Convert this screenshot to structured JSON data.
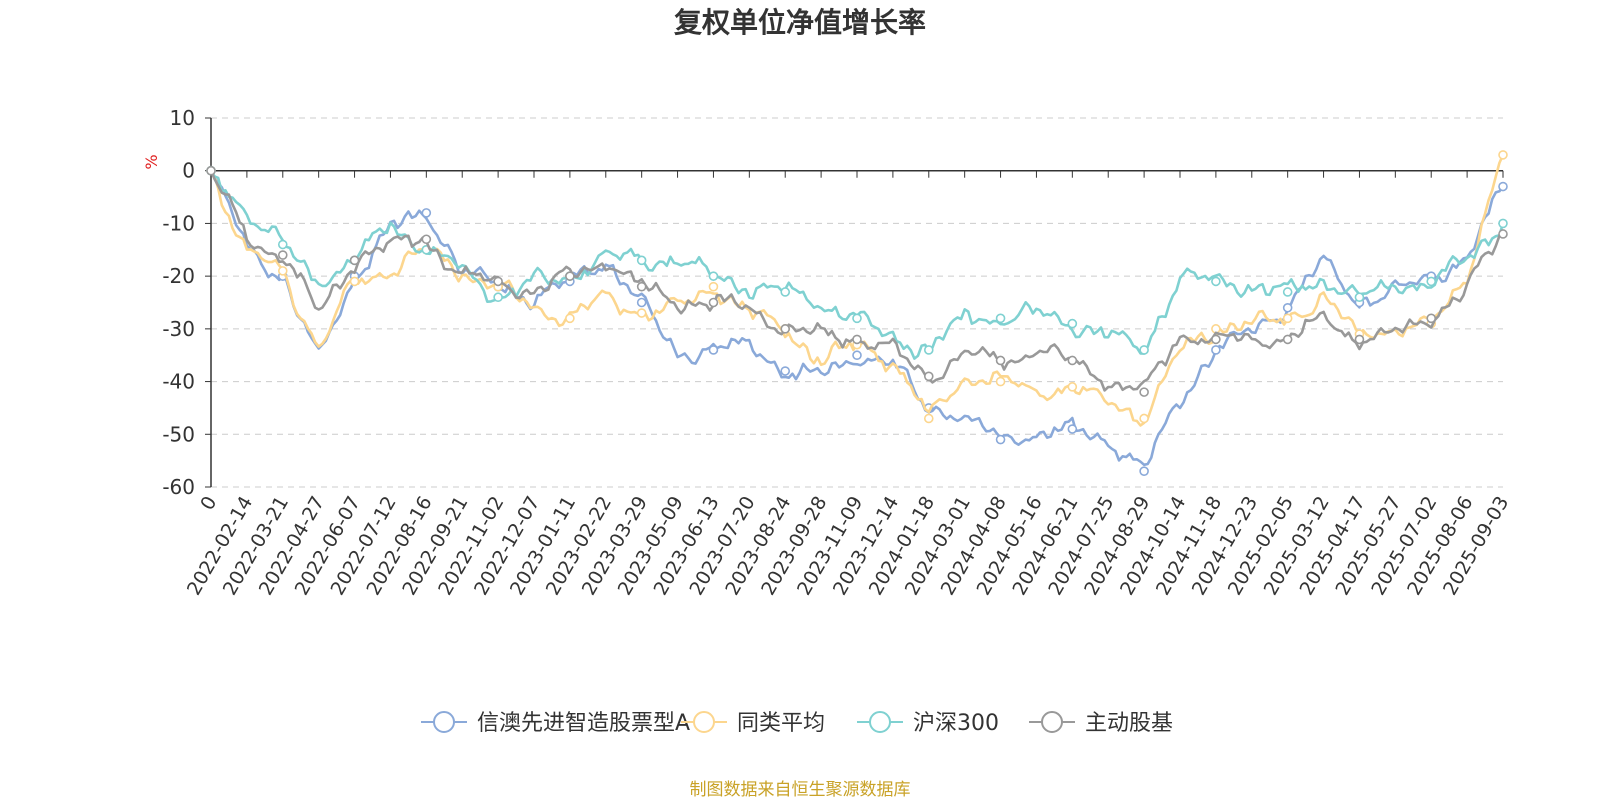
{
  "chart_data": {
    "type": "line",
    "title": "复权单位净值增长率",
    "ylabel": "%",
    "ylim": [
      -60,
      10
    ],
    "yticks": [
      10,
      0,
      -10,
      -20,
      -30,
      -40,
      -50,
      -60
    ],
    "grid": true,
    "legend_position": "bottom",
    "source_note": "制图数据来自恒生聚源数据库",
    "categories": [
      "0",
      "2022-02-14",
      "2022-03-21",
      "2022-04-27",
      "2022-06-07",
      "2022-07-12",
      "2022-08-16",
      "2022-09-21",
      "2022-11-02",
      "2022-12-07",
      "2023-01-11",
      "2023-02-22",
      "2023-03-29",
      "2023-05-09",
      "2023-06-13",
      "2023-07-20",
      "2023-08-24",
      "2023-09-28",
      "2023-11-09",
      "2023-12-14",
      "2024-01-18",
      "2024-03-01",
      "2024-04-08",
      "2024-05-16",
      "2024-06-21",
      "2024-07-25",
      "2024-08-29",
      "2024-10-14",
      "2024-11-18",
      "2024-12-23",
      "2025-02-05",
      "2025-03-12",
      "2025-04-17",
      "2025-05-27",
      "2025-07-02",
      "2025-08-06",
      "2025-09-03"
    ],
    "series": [
      {
        "name": "信澳先进智造股票型A",
        "color": "#8aa9d9",
        "values": [
          0,
          -15,
          -20,
          -36,
          -20,
          -11,
          -8,
          -19,
          -22,
          -24,
          -21,
          -17,
          -25,
          -35,
          -34,
          -33,
          -38,
          -39,
          -35,
          -37,
          -45,
          -47,
          -51,
          -50,
          -49,
          -51,
          -57,
          -43,
          -34,
          -30,
          -26,
          -17,
          -25,
          -23,
          -20,
          -17,
          -3
        ]
      },
      {
        "name": "同类平均",
        "color": "#fcd68e",
        "values": [
          0,
          -16,
          -19,
          -34,
          -21,
          -19,
          -15,
          -19,
          -22,
          -26,
          -28,
          -24,
          -27,
          -26,
          -22,
          -27,
          -30,
          -36,
          -33,
          -36,
          -47,
          -39,
          -40,
          -42,
          -41,
          -44,
          -47,
          -34,
          -30,
          -29,
          -28,
          -24,
          -31,
          -30,
          -29,
          -20,
          3
        ]
      },
      {
        "name": "沪深300",
        "color": "#7fd1d1",
        "values": [
          0,
          -8,
          -14,
          -21,
          -17,
          -10,
          -15,
          -19,
          -24,
          -21,
          -20,
          -16,
          -17,
          -17,
          -20,
          -22,
          -23,
          -25,
          -28,
          -32,
          -34,
          -28,
          -28,
          -27,
          -29,
          -31,
          -34,
          -20,
          -21,
          -22,
          -23,
          -21,
          -24,
          -22,
          -21,
          -17,
          -10
        ]
      },
      {
        "name": "主动股基",
        "color": "#999999",
        "values": [
          0,
          -13,
          -16,
          -27,
          -17,
          -14,
          -13,
          -20,
          -21,
          -23,
          -20,
          -17,
          -22,
          -25,
          -25,
          -26,
          -30,
          -31,
          -32,
          -34,
          -39,
          -35,
          -36,
          -34,
          -36,
          -40,
          -42,
          -31,
          -32,
          -32,
          -32,
          -28,
          -32,
          -31,
          -28,
          -22,
          -12
        ]
      }
    ]
  }
}
